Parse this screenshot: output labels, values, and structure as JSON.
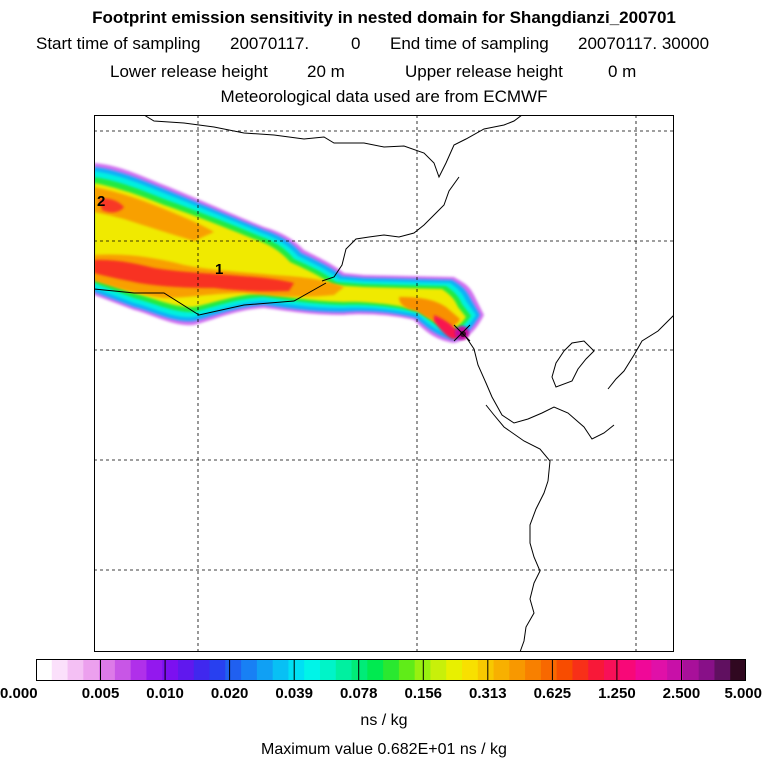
{
  "header": {
    "title": "Footprint emission sensitivity in nested domain for Shangdianzi_200701",
    "start_label": "Start time of sampling",
    "start_value": "20070117.",
    "start_time": "0",
    "end_label": "End time of sampling",
    "end_value": "20070117. 30000",
    "lower_label": "Lower release height",
    "lower_value": "20 m",
    "upper_label": "Upper release height",
    "upper_value": "0 m",
    "met": "Meteorological data used are from ECMWF"
  },
  "map": {
    "marker_1": "1",
    "marker_2": "2"
  },
  "legend": {
    "ticks": [
      "0.000",
      "0.005",
      "0.010",
      "0.020",
      "0.039",
      "0.078",
      "0.156",
      "0.313",
      "0.625",
      "1.250",
      "2.500",
      "5.000"
    ],
    "units": "ns / kg",
    "max_value": "Maximum value  0.682E+01 ns / kg",
    "colors": [
      "#ffffff",
      "#fbe0fb",
      "#f4c0f4",
      "#eca0ee",
      "#dd7ae8",
      "#c856e6",
      "#b030ea",
      "#9318ee",
      "#7c10f0",
      "#6018ee",
      "#4028ee",
      "#2840f0",
      "#2060f0",
      "#1880f4",
      "#10a0f4",
      "#08c0f4",
      "#00e0f4",
      "#00f4e8",
      "#00f4c8",
      "#00f0a0",
      "#00ec78",
      "#00ea50",
      "#2ae830",
      "#60ec18",
      "#98f010",
      "#c8f00a",
      "#e8f000",
      "#f8e000",
      "#f8c800",
      "#f8b000",
      "#f89800",
      "#f88000",
      "#f86800",
      "#f84c00",
      "#f83018",
      "#f81838",
      "#f81058",
      "#f80878",
      "#f00898",
      "#e010a8",
      "#c810a8",
      "#a8109a",
      "#881088",
      "#601060",
      "#300820"
    ]
  }
}
